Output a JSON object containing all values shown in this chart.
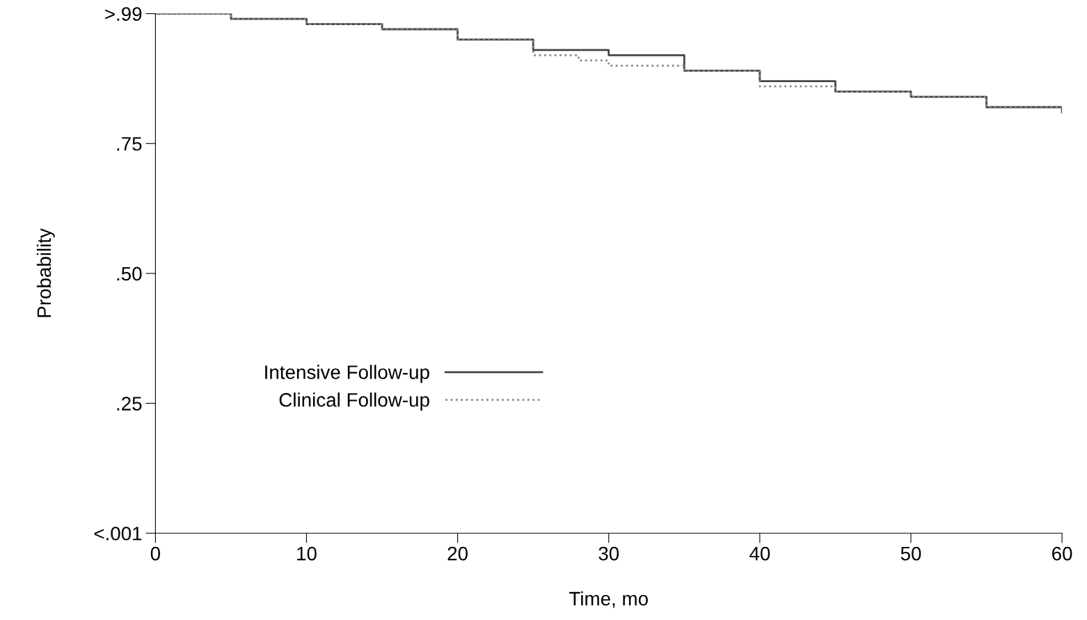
{
  "chart_data": {
    "type": "step",
    "xlabel": "Time, mo",
    "ylabel": "Probability",
    "xlim": [
      0,
      60
    ],
    "xticks": [
      0,
      10,
      20,
      30,
      40,
      50,
      60
    ],
    "ylim": [
      0,
      1
    ],
    "yticks": [
      {
        "value": 0,
        "label": "<.001"
      },
      {
        "value": 0.25,
        "label": ".25"
      },
      {
        "value": 0.5,
        "label": ".50"
      },
      {
        "value": 0.75,
        "label": ".75"
      },
      {
        "value": 1,
        "label": ">.99"
      }
    ],
    "legend": "center left",
    "grid": false,
    "series": [
      {
        "name": "Intensive Follow-up",
        "color": "#444444",
        "line_style": "solid",
        "x": [
          0,
          5,
          10,
          15,
          20,
          25,
          30,
          35,
          40,
          45,
          50,
          55,
          60
        ],
        "values": [
          1.0,
          0.99,
          0.98,
          0.97,
          0.95,
          0.93,
          0.92,
          0.89,
          0.87,
          0.85,
          0.84,
          0.82,
          0.81
        ]
      },
      {
        "name": "Clinical Follow-up",
        "color": "#888888",
        "line_style": "dotted",
        "x": [
          0,
          5,
          10,
          15,
          20,
          25,
          28,
          30,
          35,
          40,
          45,
          50,
          55,
          60
        ],
        "values": [
          1.0,
          0.99,
          0.98,
          0.97,
          0.95,
          0.92,
          0.91,
          0.9,
          0.89,
          0.86,
          0.85,
          0.84,
          0.82,
          0.81
        ]
      }
    ]
  }
}
